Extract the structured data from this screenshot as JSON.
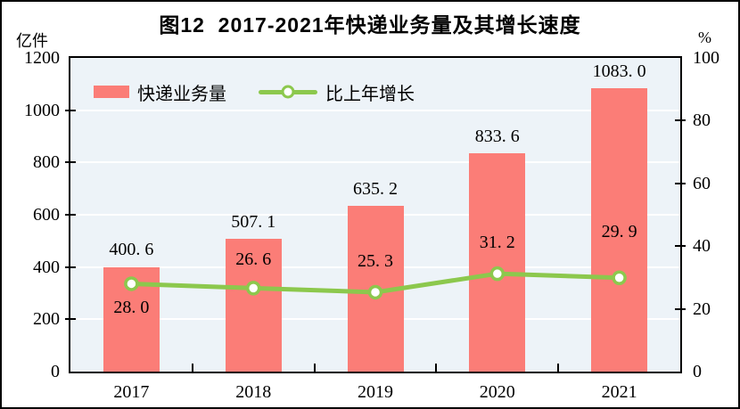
{
  "title": "图12  2017-2021年快递业务量及其增长速度",
  "legend": {
    "bar_label": "快递业务量",
    "line_label": "比上年增长"
  },
  "colors": {
    "bar": "#FB7D77",
    "line": "#8CC84D",
    "plot_bg": "#EDF3F8",
    "grid": "#FFFFFF",
    "frame": "#000000",
    "text": "#000000"
  },
  "chart_data": {
    "type": "bar+line",
    "categories": [
      "2017",
      "2018",
      "2019",
      "2020",
      "2021"
    ],
    "series": [
      {
        "name": "快递业务量",
        "type": "bar",
        "axis": "left",
        "unit": "亿件",
        "values": [
          400.6,
          507.1,
          635.2,
          833.6,
          1083.0
        ],
        "value_labels": [
          "400. 6",
          "507. 1",
          "635. 2",
          "833. 6",
          "1083. 0"
        ]
      },
      {
        "name": "比上年增长",
        "type": "line",
        "axis": "right",
        "unit": "%",
        "values": [
          28.0,
          26.6,
          25.3,
          31.2,
          29.9
        ],
        "value_labels": [
          "28. 0",
          "26. 6",
          "25. 3",
          "31. 2",
          "29. 9"
        ],
        "label_positions": [
          "below",
          "above",
          "above",
          "above",
          "above"
        ],
        "label_dy": [
          27,
          -32,
          -35,
          -35,
          -52
        ]
      }
    ],
    "left_axis": {
      "label": "亿件",
      "min": 0,
      "max": 1200,
      "ticks": [
        0,
        200,
        400,
        600,
        800,
        1000,
        1200
      ]
    },
    "right_axis": {
      "label": "%",
      "min": 0,
      "max": 100,
      "ticks": [
        0,
        20,
        40,
        60,
        80,
        100
      ]
    },
    "legend_position": "inside-top-left",
    "grid": "horizontal-white-on-lightblue"
  }
}
